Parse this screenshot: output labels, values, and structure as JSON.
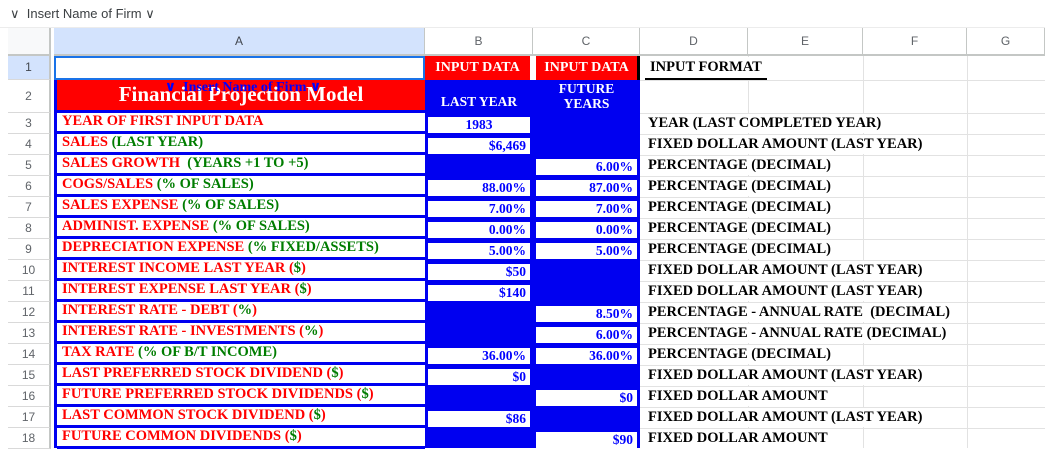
{
  "app": {
    "formula_bar_text": "∨  Insert Name of Firm ∨"
  },
  "colors": {
    "fill_red": "#ff0000",
    "fill_blue": "#0000f0",
    "text_blue": "#0000ff",
    "text_red": "#ff0000",
    "text_green": "#007d00",
    "selection_blue": "#1a73e8",
    "header_highlight": "#d3e3fd"
  },
  "column_headers": [
    "A",
    "B",
    "C",
    "D",
    "E",
    "F",
    "G"
  ],
  "row_numbers": [
    "1",
    "2",
    "3",
    "4",
    "5",
    "6",
    "7",
    "8",
    "9",
    "10",
    "11",
    "12",
    "13",
    "14",
    "15",
    "16",
    "17",
    "18"
  ],
  "sheet": {
    "a1_text": "∨  Insert Name of Firm ∨",
    "title": "Financial Projection Model",
    "b1": "INPUT DATA",
    "c1": "INPUT DATA",
    "d1": "INPUT FORMAT",
    "b2": "LAST YEAR",
    "c2_line1": "FUTURE",
    "c2_line2": "YEARS",
    "rows": [
      {
        "n": "3",
        "label": [
          [
            "YEAR OF FIRST INPUT DATA",
            "red"
          ]
        ],
        "b": "1983",
        "b_align": "center",
        "c": "",
        "fmt": "YEAR (LAST COMPLETED YEAR)"
      },
      {
        "n": "4",
        "label": [
          [
            "SALES ",
            "red"
          ],
          [
            "(LAST YEAR)",
            "green"
          ]
        ],
        "b": "$6,469",
        "c": "",
        "fmt": "FIXED DOLLAR AMOUNT (LAST YEAR)"
      },
      {
        "n": "5",
        "label": [
          [
            "SALES GROWTH  ",
            "red"
          ],
          [
            "(YEARS +1 TO +5)",
            "green"
          ]
        ],
        "b": "",
        "c": "6.00%",
        "fmt": "PERCENTAGE (DECIMAL)"
      },
      {
        "n": "6",
        "label": [
          [
            "COGS/SALES ",
            "red"
          ],
          [
            "(% OF SALES)",
            "green"
          ]
        ],
        "b": "88.00%",
        "c": "87.00%",
        "fmt": "PERCENTAGE (DECIMAL)"
      },
      {
        "n": "7",
        "label": [
          [
            "SALES EXPENSE ",
            "red"
          ],
          [
            "(% OF SALES)",
            "green"
          ]
        ],
        "b": "7.00%",
        "c": "7.00%",
        "fmt": "PERCENTAGE (DECIMAL)"
      },
      {
        "n": "8",
        "label": [
          [
            "ADMINIST. EXPENSE ",
            "red"
          ],
          [
            "(% OF SALES)",
            "green"
          ]
        ],
        "b": "0.00%",
        "c": "0.00%",
        "fmt": "PERCENTAGE (DECIMAL)"
      },
      {
        "n": "9",
        "label": [
          [
            "DEPRECIATION EXPENSE ",
            "red"
          ],
          [
            "(% FIXED/ASSETS)",
            "green"
          ]
        ],
        "b": "5.00%",
        "c": "5.00%",
        "fmt": "PERCENTAGE (DECIMAL)"
      },
      {
        "n": "10",
        "label": [
          [
            "INTEREST INCOME LAST YEAR (",
            "red"
          ],
          [
            "$",
            "green"
          ],
          [
            ")",
            "red"
          ]
        ],
        "b": "$50",
        "c": "",
        "fmt": "FIXED DOLLAR AMOUNT (LAST YEAR)"
      },
      {
        "n": "11",
        "label": [
          [
            "INTEREST EXPENSE LAST YEAR (",
            "red"
          ],
          [
            "$",
            "green"
          ],
          [
            ")",
            "red"
          ]
        ],
        "b": "$140",
        "c": "",
        "fmt": "FIXED DOLLAR AMOUNT (LAST YEAR)"
      },
      {
        "n": "12",
        "label": [
          [
            "INTEREST RATE - DEBT (",
            "red"
          ],
          [
            "%",
            "green"
          ],
          [
            ")",
            "red"
          ]
        ],
        "b": "",
        "c": "8.50%",
        "fmt": "PERCENTAGE - ANNUAL RATE  (DECIMAL)"
      },
      {
        "n": "13",
        "label": [
          [
            "INTEREST RATE - INVESTMENTS (",
            "red"
          ],
          [
            "%",
            "green"
          ],
          [
            ")",
            "red"
          ]
        ],
        "b": "",
        "c": "6.00%",
        "fmt": "PERCENTAGE - ANNUAL RATE (DECIMAL)"
      },
      {
        "n": "14",
        "label": [
          [
            "TAX RATE ",
            "red"
          ],
          [
            "(% OF B/T INCOME)",
            "green"
          ]
        ],
        "b": "36.00%",
        "c": "36.00%",
        "fmt": "PERCENTAGE (DECIMAL)"
      },
      {
        "n": "15",
        "label": [
          [
            "LAST PREFERRED STOCK DIVIDEND (",
            "red"
          ],
          [
            "$",
            "green"
          ],
          [
            ")",
            "red"
          ]
        ],
        "b": "$0",
        "c": "",
        "fmt": "FIXED DOLLAR AMOUNT (LAST YEAR)"
      },
      {
        "n": "16",
        "label": [
          [
            "FUTURE PREFERRED STOCK DIVIDENDS (",
            "red"
          ],
          [
            "$",
            "green"
          ],
          [
            ")",
            "red"
          ]
        ],
        "b": "",
        "c": "$0",
        "fmt": "FIXED DOLLAR AMOUNT"
      },
      {
        "n": "17",
        "label": [
          [
            "LAST COMMON STOCK DIVIDEND (",
            "red"
          ],
          [
            "$",
            "green"
          ],
          [
            ")",
            "red"
          ]
        ],
        "b": "$86",
        "c": "",
        "fmt": "FIXED DOLLAR AMOUNT (LAST YEAR)"
      },
      {
        "n": "18",
        "label": [
          [
            "FUTURE COMMON DIVIDENDS (",
            "red"
          ],
          [
            "$",
            "green"
          ],
          [
            ")",
            "red"
          ]
        ],
        "b": "",
        "c": "$90",
        "fmt": "FIXED DOLLAR AMOUNT"
      }
    ]
  }
}
